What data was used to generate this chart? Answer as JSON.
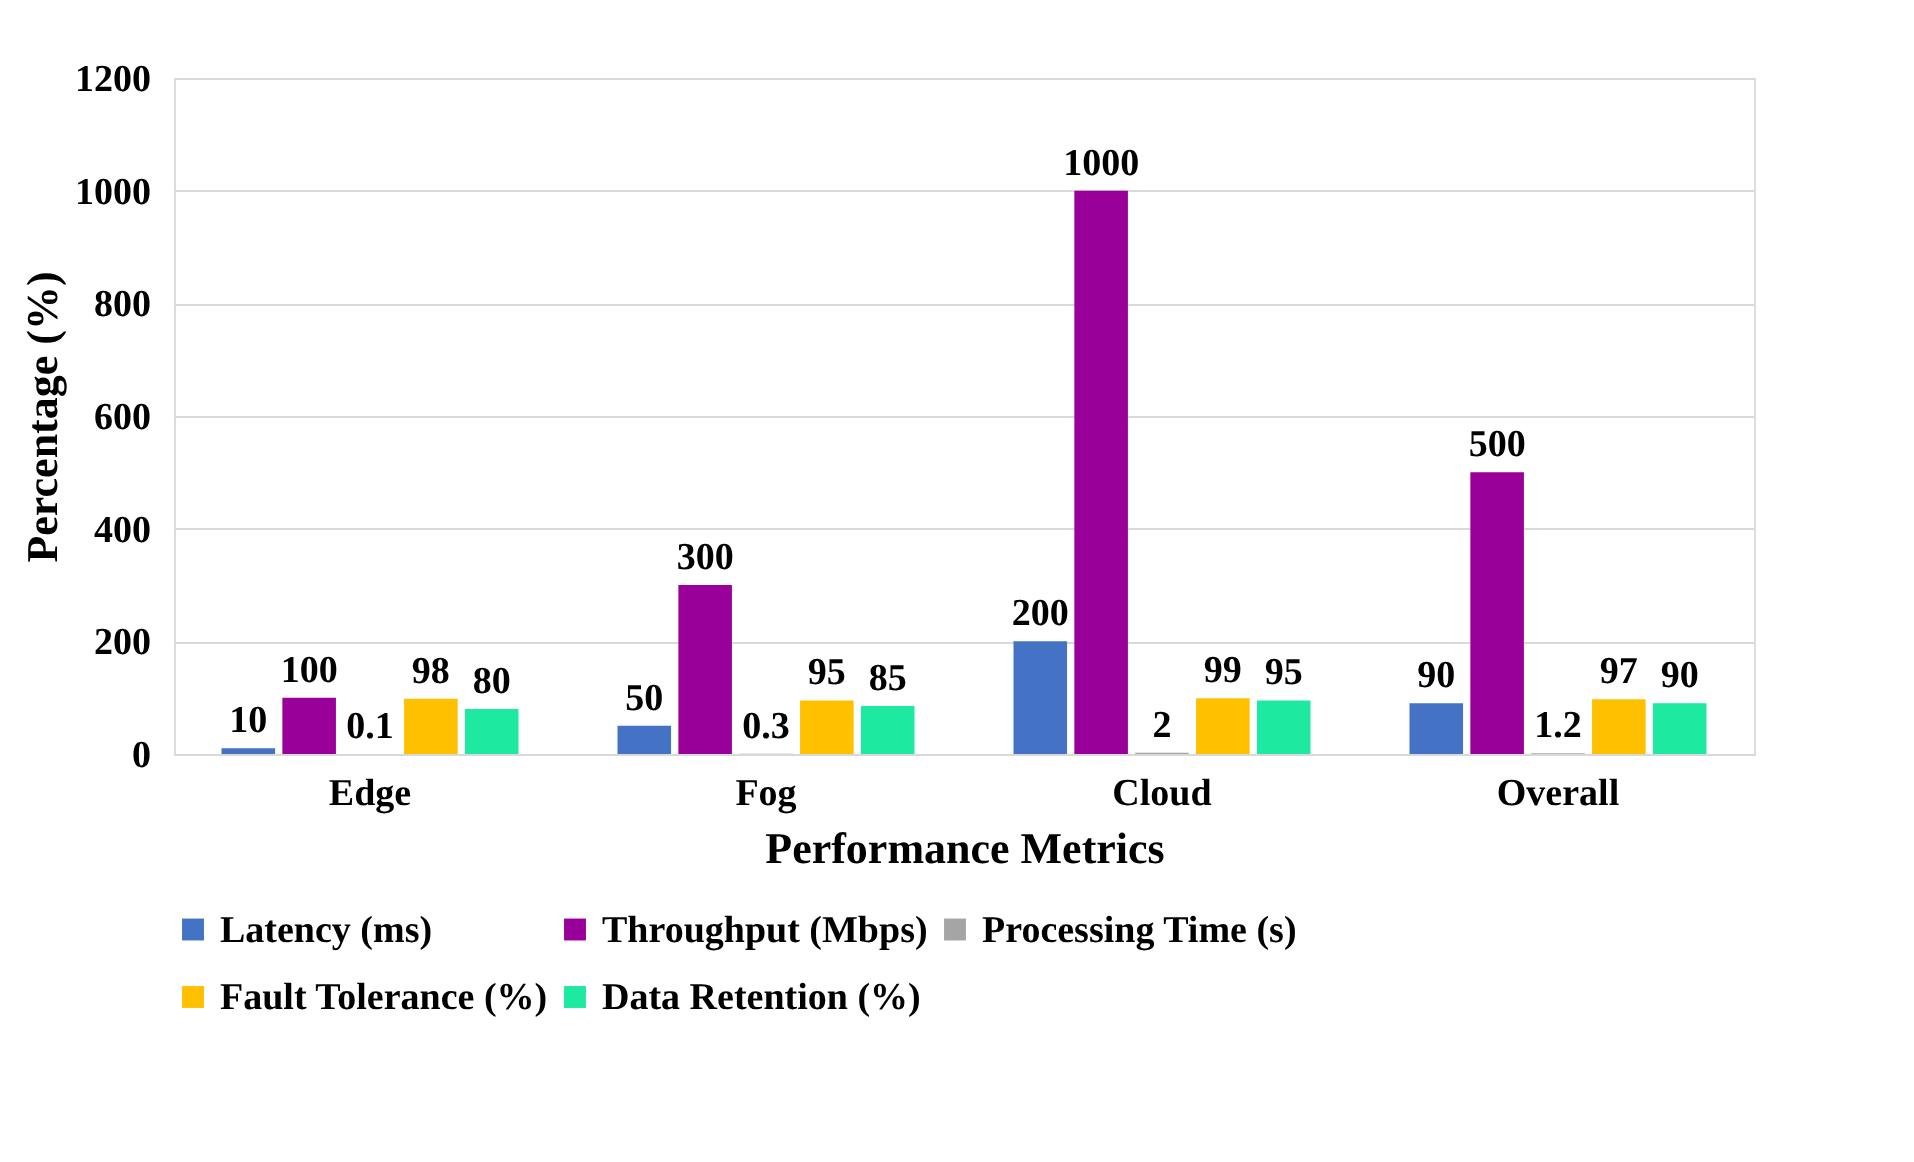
{
  "chart_data": {
    "type": "bar",
    "xlabel": "Performance Metrics",
    "ylabel": "Percentage (%)",
    "categories": [
      "Edge",
      "Fog",
      "Cloud",
      "Overall"
    ],
    "series": [
      {
        "name": "Latency (ms)",
        "color": "#4472c4",
        "values": [
          10,
          50,
          200,
          90
        ]
      },
      {
        "name": "Throughput (Mbps)",
        "color": "#990099",
        "values": [
          100,
          300,
          1000,
          500
        ]
      },
      {
        "name": "Processing Time (s)",
        "color": "#a5a5a5",
        "values": [
          0.1,
          0.3,
          2,
          1.2
        ]
      },
      {
        "name": "Fault Tolerance (%)",
        "color": "#ffc000",
        "values": [
          98,
          95,
          99,
          97
        ]
      },
      {
        "name": "Data Retention (%)",
        "color": "#1de9a0",
        "values": [
          80,
          85,
          95,
          90
        ]
      }
    ],
    "ylim": [
      0,
      1200
    ],
    "yticks": [
      0,
      200,
      400,
      600,
      800,
      1000,
      1200
    ],
    "grid": "y",
    "legend": "bottom",
    "data_labels": true
  }
}
